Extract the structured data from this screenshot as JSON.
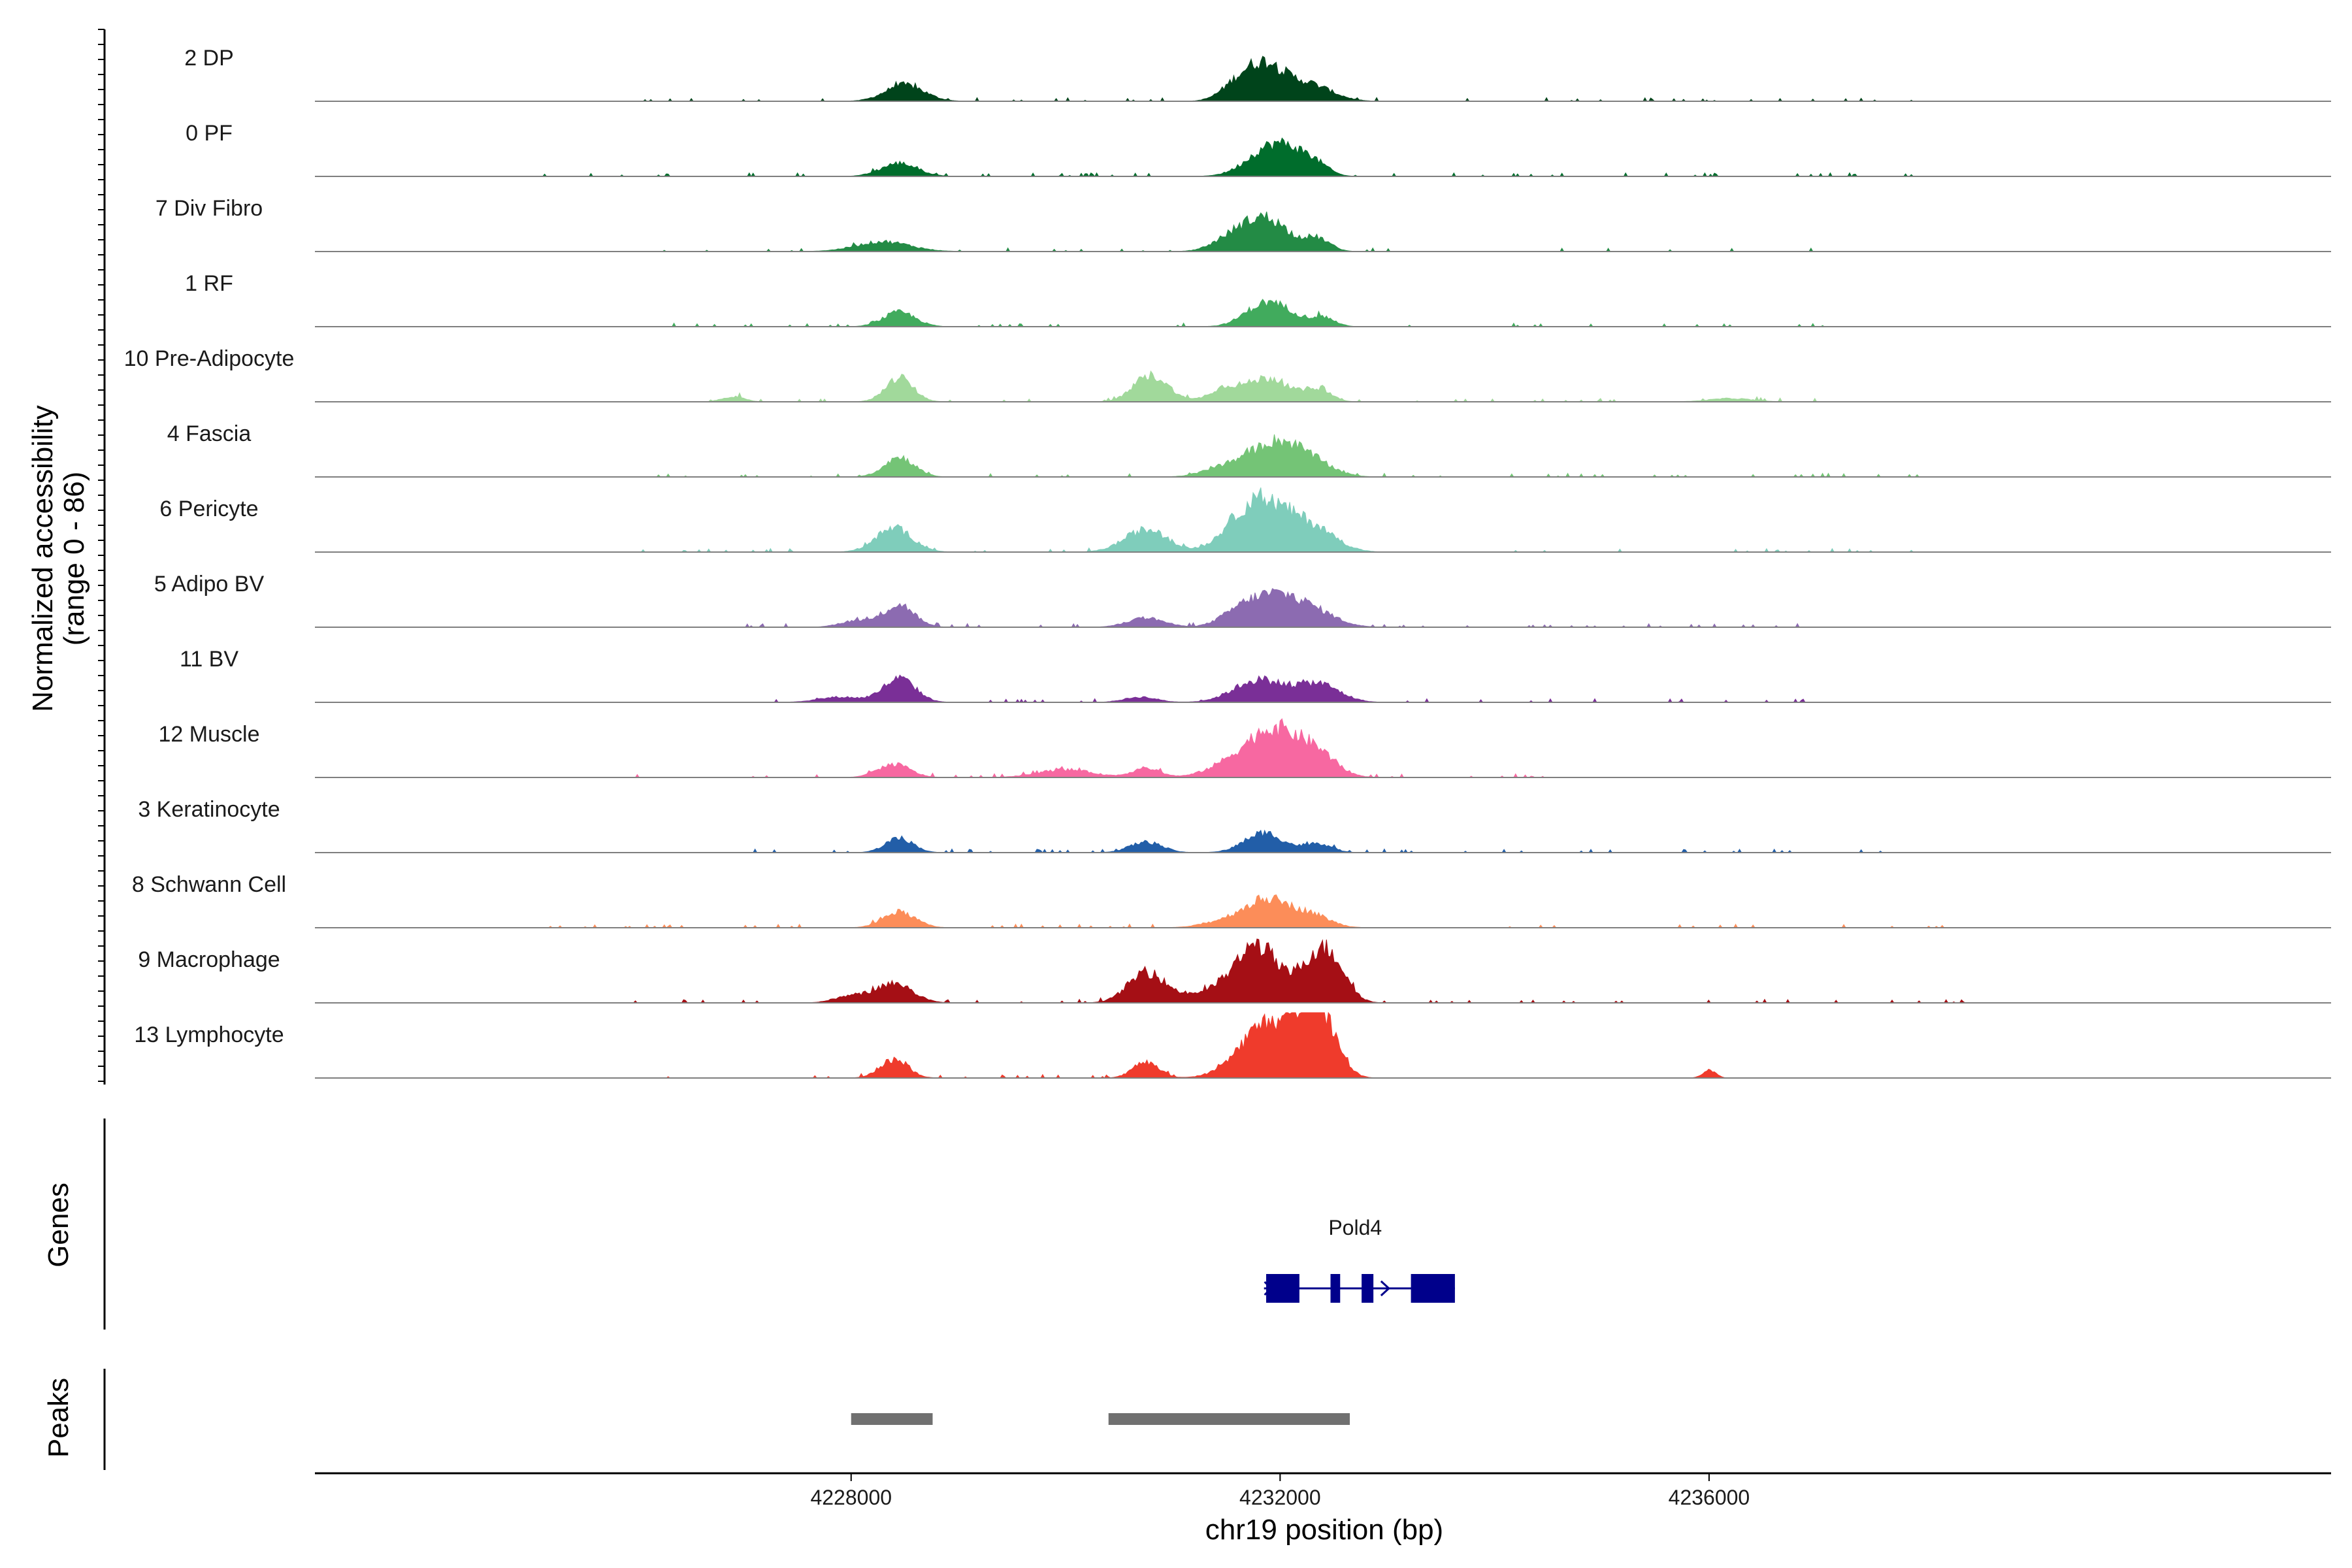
{
  "chart_data": {
    "type": "area",
    "y_axis_title_line1": "Normalized accessibility",
    "y_axis_title_line2": "(range 0 - 86)",
    "y_range": [
      0,
      86
    ],
    "x_axis_title": "chr19 position (bp)",
    "x_range": [
      4223000,
      4241800
    ],
    "x_ticks": [
      4228000,
      4232000,
      4236000
    ],
    "x_tick_labels": [
      "4228000",
      "4232000",
      "4236000"
    ],
    "tracks": [
      {
        "name": "2 DP",
        "color": "#00441b",
        "peaks": [
          [
            4228500,
            0.25,
            180
          ],
          [
            4231600,
            0.25,
            150
          ],
          [
            4231850,
            0.45,
            160
          ],
          [
            4232150,
            0.25,
            220
          ],
          [
            4232400,
            0.08,
            180
          ]
        ],
        "noise": [
          [
            4225000,
            4238000
          ]
        ]
      },
      {
        "name": "0 PF",
        "color": "#006d2c",
        "peaks": [
          [
            4228450,
            0.2,
            170
          ],
          [
            4231900,
            0.42,
            210
          ],
          [
            4232350,
            0.12,
            120
          ],
          [
            4232150,
            0.2,
            160
          ]
        ],
        "noise": [
          [
            4225000,
            4238000
          ]
        ]
      },
      {
        "name": "7 Div Fibro",
        "color": "#238b45",
        "peaks": [
          [
            4228300,
            0.15,
            250
          ],
          [
            4231500,
            0.12,
            160
          ],
          [
            4231850,
            0.52,
            220
          ],
          [
            4232350,
            0.18,
            120
          ]
        ],
        "noise": [
          [
            4226000,
            4237500
          ]
        ]
      },
      {
        "name": "1 RF",
        "color": "#41ab5d",
        "peaks": [
          [
            4228450,
            0.22,
            150
          ],
          [
            4231850,
            0.34,
            180
          ],
          [
            4232400,
            0.14,
            110
          ],
          [
            4232100,
            0.12,
            140
          ]
        ],
        "noise": [
          [
            4226000,
            4238000
          ]
        ]
      },
      {
        "name": "10 Pre-Adipocyte",
        "color": "#a1d99b",
        "peaks": [
          [
            4228450,
            0.36,
            130
          ],
          [
            4230800,
            0.4,
            160
          ],
          [
            4231500,
            0.22,
            150
          ],
          [
            4231900,
            0.36,
            180
          ],
          [
            4232350,
            0.2,
            120
          ],
          [
            4226900,
            0.08,
            100
          ],
          [
            4236200,
            0.05,
            200
          ]
        ],
        "noise": [
          [
            4226500,
            4237000
          ]
        ]
      },
      {
        "name": "4 Fascia",
        "color": "#74c476",
        "peaks": [
          [
            4228450,
            0.3,
            140
          ],
          [
            4231500,
            0.15,
            200
          ],
          [
            4231950,
            0.5,
            220
          ],
          [
            4232300,
            0.2,
            200
          ]
        ],
        "noise": [
          [
            4226000,
            4238000
          ]
        ]
      },
      {
        "name": "6 Pericyte",
        "color": "#7fcdbb",
        "peaks": [
          [
            4228400,
            0.36,
            170
          ],
          [
            4230750,
            0.34,
            200
          ],
          [
            4231650,
            0.42,
            200
          ],
          [
            4231950,
            0.58,
            230
          ],
          [
            4232350,
            0.28,
            200
          ]
        ],
        "noise": [
          [
            4226000,
            4238000
          ]
        ]
      },
      {
        "name": "5 Adipo BV",
        "color": "#8c6bb1",
        "peaks": [
          [
            4228450,
            0.34,
            140
          ],
          [
            4228050,
            0.1,
            150
          ],
          [
            4230750,
            0.14,
            170
          ],
          [
            4231600,
            0.16,
            170
          ],
          [
            4231950,
            0.48,
            240
          ],
          [
            4232350,
            0.18,
            200
          ]
        ],
        "noise": [
          [
            4227000,
            4237000
          ]
        ]
      },
      {
        "name": "11 BV",
        "color": "#7a2f97",
        "peaks": [
          [
            4228450,
            0.36,
            150
          ],
          [
            4227900,
            0.08,
            200
          ],
          [
            4230700,
            0.08,
            150
          ],
          [
            4231800,
            0.34,
            230
          ],
          [
            4232350,
            0.28,
            200
          ]
        ],
        "noise": [
          [
            4227000,
            4237000
          ]
        ]
      },
      {
        "name": "12 Muscle",
        "color": "#f768a1",
        "peaks": [
          [
            4228400,
            0.2,
            150
          ],
          [
            4230000,
            0.12,
            250
          ],
          [
            4230750,
            0.14,
            130
          ],
          [
            4231550,
            0.2,
            220
          ],
          [
            4231950,
            0.7,
            230
          ],
          [
            4232350,
            0.32,
            180
          ]
        ],
        "noise": [
          [
            4225900,
            4234500
          ]
        ]
      },
      {
        "name": "3 Keratinocyte",
        "color": "#225ea8",
        "peaks": [
          [
            4228450,
            0.22,
            130
          ],
          [
            4230750,
            0.16,
            150
          ],
          [
            4231850,
            0.3,
            180
          ],
          [
            4232350,
            0.14,
            130
          ]
        ],
        "noise": [
          [
            4227000,
            4238000
          ]
        ]
      },
      {
        "name": "8 Schwann Cell",
        "color": "#fc8d59",
        "peaks": [
          [
            4228450,
            0.24,
            150
          ],
          [
            4231550,
            0.12,
            220
          ],
          [
            4231900,
            0.4,
            200
          ],
          [
            4232300,
            0.18,
            170
          ]
        ],
        "noise": [
          [
            4225000,
            4238500
          ]
        ]
      },
      {
        "name": "9 Macrophage",
        "color": "#a50f15",
        "peaks": [
          [
            4228400,
            0.3,
            170
          ],
          [
            4228000,
            0.1,
            150
          ],
          [
            4230750,
            0.45,
            170
          ],
          [
            4231250,
            0.12,
            250
          ],
          [
            4231800,
            0.85,
            180
          ],
          [
            4232350,
            0.75,
            170
          ],
          [
            4232550,
            0.25,
            120
          ],
          [
            4231500,
            0.15,
            150
          ]
        ],
        "noise": [
          [
            4225800,
            4238500
          ]
        ]
      },
      {
        "name": "13 Lymphocyte",
        "color": "#ef3b2c",
        "peaks": [
          [
            4228400,
            0.28,
            130
          ],
          [
            4230750,
            0.24,
            120
          ],
          [
            4231900,
            0.85,
            260
          ],
          [
            4232300,
            0.9,
            150
          ],
          [
            4232500,
            0.3,
            120
          ],
          [
            4236000,
            0.12,
            60
          ]
        ],
        "noise": [
          [
            4225900,
            4232700
          ]
        ]
      }
    ],
    "genes": [
      {
        "name": "Pold4",
        "start": 4231850,
        "end": 4233630,
        "strand": "+",
        "exons": [
          [
            4231870,
            4232180
          ],
          [
            4232470,
            4232560
          ],
          [
            4232760,
            4232870
          ],
          [
            4233220,
            4233630
          ]
        ]
      }
    ],
    "gene_track_label": "Genes",
    "gene_color": "#00008b",
    "peaks_track_label": "Peaks",
    "peak_regions": [
      [
        4228000,
        4228760
      ],
      [
        4230400,
        4232650
      ]
    ],
    "peak_color": "#707070"
  }
}
